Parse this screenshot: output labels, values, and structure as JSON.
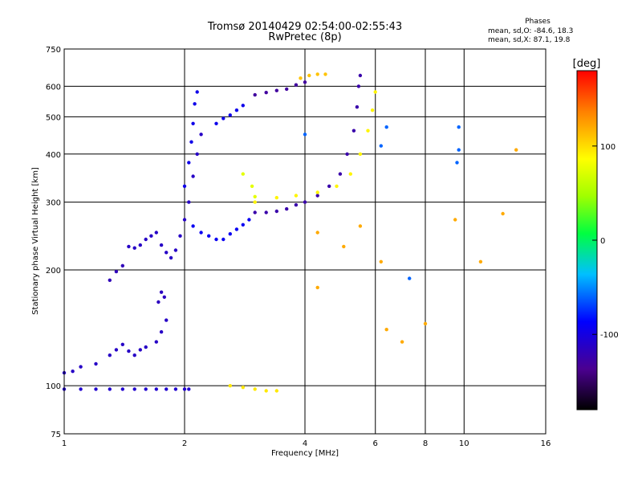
{
  "chart_data": {
    "type": "scatter",
    "title": "Tromsø 20140429 02:54:00-02:55:43",
    "subtitle": "RwPretec (8p)",
    "xlabel": "Frequency [MHz]",
    "ylabel": "Stationary phase Virtual Height [km]",
    "x_scale": "log",
    "y_scale": "log",
    "xlim": [
      1,
      16
    ],
    "ylim": [
      75,
      750
    ],
    "x_ticks": [
      1,
      2,
      4,
      6,
      8,
      10,
      16
    ],
    "y_ticks": [
      75,
      100,
      200,
      300,
      400,
      500,
      600,
      750
    ],
    "grid": true,
    "phases_title": "Phases",
    "phase_stats": [
      "mean, sd,O: -84.6, 18.3",
      "mean, sd,X:  87.1, 19.8"
    ],
    "colorbar": {
      "label": "[deg]",
      "ticks": [
        -100,
        0,
        100
      ],
      "range": [
        -180,
        180
      ]
    },
    "series": [
      {
        "color_value": -108,
        "points": [
          [
            1.0,
            98
          ],
          [
            1.1,
            98
          ],
          [
            1.2,
            98
          ],
          [
            1.3,
            98
          ],
          [
            1.4,
            98
          ],
          [
            1.5,
            98
          ],
          [
            1.6,
            98
          ],
          [
            1.7,
            98
          ],
          [
            1.8,
            98
          ],
          [
            1.9,
            98
          ],
          [
            2.0,
            98
          ],
          [
            2.05,
            98
          ]
        ]
      },
      {
        "color_value": -112,
        "points": [
          [
            1.0,
            108
          ],
          [
            1.05,
            109
          ],
          [
            1.1,
            112
          ],
          [
            1.2,
            114
          ],
          [
            1.3,
            120
          ],
          [
            1.35,
            124
          ],
          [
            1.4,
            128
          ],
          [
            1.45,
            123
          ],
          [
            1.5,
            120
          ],
          [
            1.55,
            124
          ],
          [
            1.6,
            126
          ],
          [
            1.7,
            130
          ],
          [
            1.75,
            138
          ],
          [
            1.8,
            148
          ]
        ]
      },
      {
        "color_value": -115,
        "points": [
          [
            1.72,
            165
          ],
          [
            1.75,
            175
          ],
          [
            1.78,
            170
          ]
        ]
      },
      {
        "color_value": -118,
        "points": [
          [
            1.3,
            188
          ],
          [
            1.35,
            198
          ],
          [
            1.4,
            205
          ]
        ]
      },
      {
        "color_value": -112,
        "points": [
          [
            1.45,
            230
          ],
          [
            1.5,
            228
          ],
          [
            1.55,
            232
          ],
          [
            1.6,
            240
          ],
          [
            1.65,
            245
          ],
          [
            1.7,
            250
          ],
          [
            1.75,
            232
          ],
          [
            1.8,
            222
          ],
          [
            1.85,
            215
          ],
          [
            1.9,
            225
          ],
          [
            1.95,
            245
          ],
          [
            2.0,
            270
          ],
          [
            2.05,
            300
          ],
          [
            2.1,
            350
          ],
          [
            2.15,
            400
          ],
          [
            2.2,
            450
          ]
        ]
      },
      {
        "color_value": -96,
        "points": [
          [
            2.0,
            330
          ],
          [
            2.05,
            380
          ],
          [
            2.08,
            430
          ],
          [
            2.1,
            480
          ],
          [
            2.12,
            540
          ],
          [
            2.15,
            580
          ]
        ]
      },
      {
        "color_value": -92,
        "points": [
          [
            2.1,
            260
          ],
          [
            2.2,
            250
          ],
          [
            2.3,
            245
          ],
          [
            2.4,
            240
          ],
          [
            2.5,
            240
          ],
          [
            2.6,
            248
          ],
          [
            2.7,
            255
          ],
          [
            2.8,
            262
          ],
          [
            2.9,
            270
          ]
        ]
      },
      {
        "color_value": -95,
        "points": [
          [
            2.4,
            480
          ],
          [
            2.5,
            495
          ],
          [
            2.6,
            505
          ],
          [
            2.7,
            520
          ],
          [
            2.8,
            535
          ]
        ]
      },
      {
        "color_value": -125,
        "points": [
          [
            3.0,
            282
          ],
          [
            3.2,
            282
          ],
          [
            3.4,
            284
          ],
          [
            3.6,
            288
          ],
          [
            3.8,
            295
          ],
          [
            4.0,
            300
          ],
          [
            4.3,
            312
          ],
          [
            4.6,
            330
          ],
          [
            4.9,
            355
          ],
          [
            5.1,
            400
          ],
          [
            5.3,
            460
          ],
          [
            5.4,
            530
          ],
          [
            5.45,
            600
          ],
          [
            5.5,
            640
          ]
        ]
      },
      {
        "color_value": -130,
        "points": [
          [
            3.0,
            570
          ],
          [
            3.2,
            578
          ],
          [
            3.4,
            585
          ],
          [
            3.6,
            590
          ],
          [
            3.8,
            605
          ],
          [
            4.0,
            615
          ]
        ]
      },
      {
        "color_value": 95,
        "points": [
          [
            2.6,
            100
          ],
          [
            2.8,
            99
          ],
          [
            3.0,
            98
          ],
          [
            3.2,
            97
          ],
          [
            3.4,
            97
          ]
        ]
      },
      {
        "color_value": 110,
        "points": [
          [
            3.9,
            630
          ],
          [
            4.1,
            640
          ],
          [
            4.3,
            645
          ],
          [
            4.5,
            645
          ]
        ]
      },
      {
        "color_value": 90,
        "points": [
          [
            3.0,
            300
          ],
          [
            3.4,
            308
          ],
          [
            3.8,
            312
          ],
          [
            4.3,
            318
          ],
          [
            4.8,
            330
          ],
          [
            5.2,
            355
          ],
          [
            5.5,
            400
          ],
          [
            5.75,
            460
          ],
          [
            5.9,
            520
          ],
          [
            6.0,
            580
          ]
        ]
      },
      {
        "color_value": 75,
        "points": [
          [
            2.8,
            355
          ],
          [
            2.95,
            330
          ],
          [
            3.0,
            310
          ]
        ]
      },
      {
        "color_value": 120,
        "points": [
          [
            4.3,
            180
          ],
          [
            4.3,
            250
          ],
          [
            5.0,
            230
          ],
          [
            5.5,
            260
          ],
          [
            6.2,
            210
          ],
          [
            6.4,
            140
          ],
          [
            7.0,
            130
          ],
          [
            8.0,
            145
          ],
          [
            9.5,
            270
          ],
          [
            11.0,
            210
          ],
          [
            12.5,
            280
          ],
          [
            13.5,
            410
          ]
        ]
      },
      {
        "color_value": -60,
        "points": [
          [
            4.0,
            450
          ],
          [
            6.2,
            420
          ],
          [
            6.4,
            470
          ],
          [
            7.3,
            190
          ],
          [
            9.6,
            380
          ],
          [
            9.7,
            470
          ],
          [
            9.7,
            410
          ]
        ]
      }
    ]
  }
}
